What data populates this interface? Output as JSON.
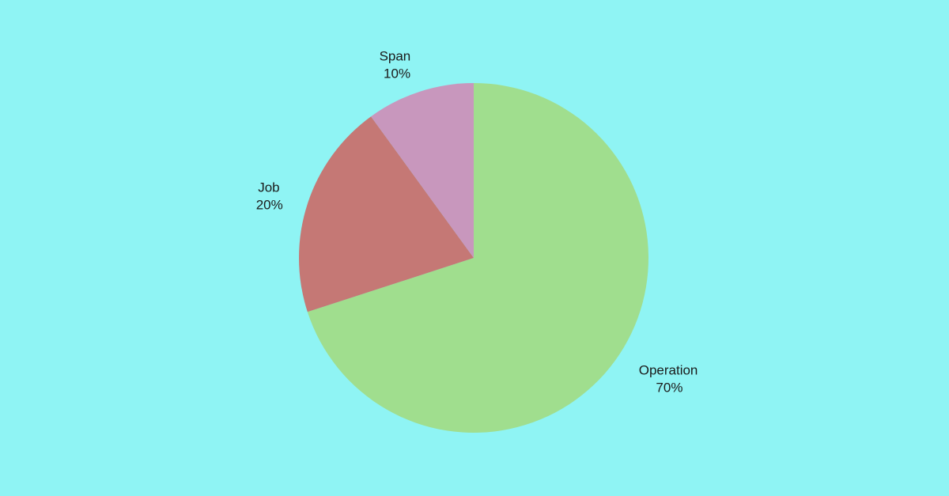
{
  "page": {
    "background": "#8ff4f4"
  },
  "chart_data": {
    "type": "pie",
    "title": "",
    "start_angle_deg": 0,
    "direction": "clockwise",
    "slices": [
      {
        "label": "Operation",
        "value": 70,
        "value_label": "70%",
        "color": "#a0de8e"
      },
      {
        "label": "Job",
        "value": 20,
        "value_label": "20%",
        "color": "#c57875"
      },
      {
        "label": "Span",
        "value": 10,
        "value_label": "10%",
        "color": "#c897bd"
      }
    ]
  }
}
